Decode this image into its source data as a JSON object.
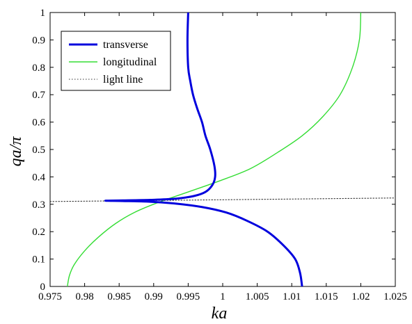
{
  "chart_data": {
    "type": "line",
    "xlabel": "ka",
    "ylabel": "qa/π",
    "xlim": [
      0.975,
      1.025
    ],
    "ylim": [
      0,
      1
    ],
    "x_ticks": [
      "0.975",
      "0.98",
      "0.985",
      "0.99",
      "0.995",
      "1",
      "1.005",
      "1.01",
      "1.015",
      "1.02",
      "1.025"
    ],
    "y_ticks": [
      "0",
      "0.1",
      "0.2",
      "0.3",
      "0.4",
      "0.5",
      "0.6",
      "0.7",
      "0.8",
      "0.9",
      "1"
    ],
    "grid": false,
    "legend_position": "top-left",
    "series": [
      {
        "name": "transverse",
        "color": "#0000dd",
        "style": "solid-thick",
        "points": [
          [
            1.0115,
            0.0
          ],
          [
            1.0112,
            0.05
          ],
          [
            1.0105,
            0.1
          ],
          [
            1.0088,
            0.15
          ],
          [
            1.0065,
            0.2
          ],
          [
            1.0035,
            0.24
          ],
          [
            1.0005,
            0.27
          ],
          [
            0.997,
            0.29
          ],
          [
            0.993,
            0.303
          ],
          [
            0.989,
            0.31
          ],
          [
            0.9855,
            0.312
          ],
          [
            0.983,
            0.313
          ],
          [
            0.9855,
            0.314
          ],
          [
            0.9895,
            0.316
          ],
          [
            0.993,
            0.32
          ],
          [
            0.9958,
            0.33
          ],
          [
            0.9975,
            0.345
          ],
          [
            0.9985,
            0.37
          ],
          [
            0.9989,
            0.4
          ],
          [
            0.9988,
            0.44
          ],
          [
            0.9982,
            0.5
          ],
          [
            0.9975,
            0.55
          ],
          [
            0.997,
            0.6
          ],
          [
            0.9963,
            0.65
          ],
          [
            0.9957,
            0.7
          ],
          [
            0.9953,
            0.75
          ],
          [
            0.995,
            0.8
          ],
          [
            0.9949,
            0.9
          ],
          [
            0.995,
            1.0
          ]
        ]
      },
      {
        "name": "longitudinal",
        "color": "#33dd33",
        "style": "solid",
        "points": [
          [
            0.9775,
            0.0
          ],
          [
            0.9778,
            0.04
          ],
          [
            0.9785,
            0.08
          ],
          [
            0.98,
            0.13
          ],
          [
            0.982,
            0.18
          ],
          [
            0.9845,
            0.23
          ],
          [
            0.9872,
            0.27
          ],
          [
            0.9905,
            0.305
          ],
          [
            0.995,
            0.345
          ],
          [
            0.9995,
            0.385
          ],
          [
            1.004,
            0.43
          ],
          [
            1.008,
            0.49
          ],
          [
            1.0115,
            0.55
          ],
          [
            1.0145,
            0.62
          ],
          [
            1.017,
            0.7
          ],
          [
            1.0188,
            0.8
          ],
          [
            1.0198,
            0.9
          ],
          [
            1.02,
            1.0
          ]
        ]
      },
      {
        "name": "light line",
        "color": "#333333",
        "style": "dotted",
        "points": [
          [
            0.975,
            0.31
          ],
          [
            1.025,
            0.323
          ]
        ]
      }
    ]
  },
  "colors": {
    "background": "#ffffff",
    "axes": "#000000"
  }
}
